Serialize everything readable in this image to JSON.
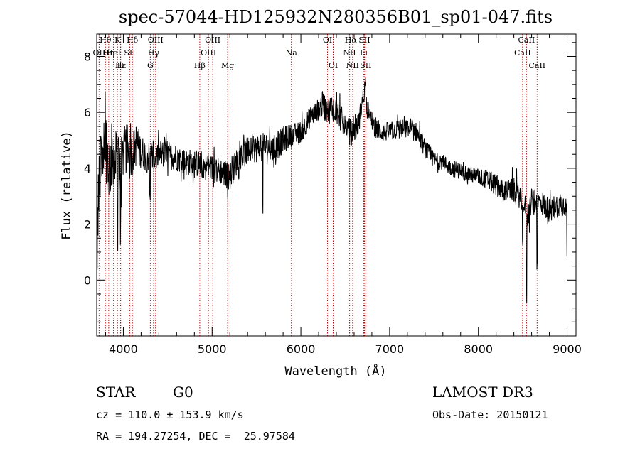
{
  "header": {
    "title": "spec-57044-HD125932N280356B01_sp01-047.fits"
  },
  "info": {
    "object_class": "STAR",
    "subclass": "G0",
    "survey": "LAMOST DR3",
    "redshift": "cz = 110.0 ± 153.9 km/s",
    "obs_date": "Obs-Date: 20150121",
    "coords": "RA = 194.27254, DEC =  25.97584"
  },
  "colors": {
    "spectrum": "#000000",
    "line_markers": "#cc0000",
    "axes": "#000000"
  },
  "chart_data": {
    "type": "line",
    "title": "spec-57044-HD125932N280356B01_sp01-047.fits",
    "xlabel": "Wavelength (Å)",
    "ylabel": "Flux (relative)",
    "xlim": [
      3700,
      9100
    ],
    "ylim": [
      -2,
      8.8
    ],
    "grid": false,
    "x_ticks": [
      4000,
      5000,
      6000,
      7000,
      8000,
      9000
    ],
    "y_ticks": [
      0,
      2,
      4,
      6,
      8
    ],
    "spectrum_envelope": {
      "wavelength": [
        3700,
        3720,
        3760,
        3800,
        3840,
        3880,
        3920,
        3960,
        4000,
        4050,
        4100,
        4150,
        4200,
        4250,
        4300,
        4350,
        4400,
        4500,
        4600,
        4700,
        4800,
        4900,
        5000,
        5100,
        5200,
        5300,
        5400,
        5500,
        5600,
        5700,
        5800,
        5900,
        6000,
        6100,
        6200,
        6250,
        6300,
        6350,
        6400,
        6450,
        6500,
        6550,
        6600,
        6650,
        6700,
        6720,
        6750,
        6800,
        6900,
        7000,
        7100,
        7200,
        7300,
        7400,
        7500,
        7600,
        7700,
        7800,
        7900,
        8000,
        8100,
        8200,
        8300,
        8400,
        8500,
        8550,
        8600,
        8650,
        8700,
        8800,
        8900,
        9000
      ],
      "flux": [
        0.2,
        3.0,
        4.8,
        5.0,
        4.0,
        4.6,
        4.2,
        4.5,
        4.6,
        4.7,
        4.5,
        4.9,
        4.6,
        4.5,
        4.4,
        4.3,
        4.5,
        4.5,
        4.4,
        4.2,
        4.2,
        4.1,
        4.0,
        3.9,
        3.7,
        4.4,
        4.6,
        4.7,
        4.8,
        4.7,
        5.0,
        5.2,
        5.3,
        5.8,
        6.1,
        6.3,
        6.0,
        6.2,
        6.1,
        5.8,
        5.5,
        5.4,
        5.3,
        5.6,
        6.5,
        6.9,
        6.1,
        5.6,
        5.3,
        5.3,
        5.4,
        5.4,
        5.3,
        4.7,
        4.3,
        4.2,
        4.0,
        3.9,
        3.8,
        3.7,
        3.6,
        3.4,
        3.2,
        3.2,
        2.9,
        2.3,
        2.8,
        2.8,
        2.8,
        2.5,
        2.7,
        2.7
      ],
      "noise_amplitude": [
        0.8,
        1.5,
        1.5,
        1.4,
        1.3,
        1.2,
        1.1,
        1.0,
        0.9,
        0.9,
        0.8,
        0.8,
        0.6,
        0.6,
        0.6,
        0.5,
        0.5,
        0.5,
        0.5,
        0.5,
        0.5,
        0.5,
        0.5,
        0.5,
        0.5,
        0.5,
        0.5,
        0.5,
        0.5,
        0.5,
        0.5,
        0.4,
        0.4,
        0.4,
        0.4,
        0.5,
        0.5,
        0.5,
        0.5,
        0.5,
        0.4,
        0.4,
        0.4,
        0.4,
        0.4,
        0.4,
        0.4,
        0.4,
        0.35,
        0.35,
        0.35,
        0.35,
        0.35,
        0.35,
        0.3,
        0.3,
        0.3,
        0.3,
        0.3,
        0.3,
        0.35,
        0.4,
        0.4,
        0.45,
        0.45,
        0.5,
        0.45,
        0.45,
        0.45,
        0.45,
        0.45,
        0.45
      ]
    },
    "spectral_lines": [
      {
        "label": "OII",
        "x": 3727,
        "row": 1
      },
      {
        "label": "Hθ",
        "x": 3798,
        "row": 0
      },
      {
        "label": "Hη",
        "x": 3835,
        "row": 1
      },
      {
        "label": "HeI",
        "x": 3889,
        "row": 1
      },
      {
        "label": "Hε",
        "x": 3970,
        "row": 2
      },
      {
        "label": "K",
        "x": 3934,
        "row": 0
      },
      {
        "label": "H",
        "x": 3968,
        "row": 2
      },
      {
        "label": "SII",
        "x": 4072,
        "row": 1
      },
      {
        "label": "Hδ",
        "x": 4102,
        "row": 0
      },
      {
        "label": "G",
        "x": 4304,
        "row": 2
      },
      {
        "label": "Hγ",
        "x": 4340,
        "row": 1
      },
      {
        "label": "OIII",
        "x": 4363,
        "row": 0
      },
      {
        "label": "Hβ",
        "x": 4861,
        "row": 2
      },
      {
        "label": "OIII",
        "x": 4959,
        "row": 1
      },
      {
        "label": "OIII",
        "x": 5007,
        "row": 0
      },
      {
        "label": "Mg",
        "x": 5175,
        "row": 2
      },
      {
        "label": "Na",
        "x": 5893,
        "row": 1
      },
      {
        "label": "OI",
        "x": 6300,
        "row": 0
      },
      {
        "label": "OI",
        "x": 6364,
        "row": 2
      },
      {
        "label": "NII",
        "x": 6548,
        "row": 1
      },
      {
        "label": "Hα",
        "x": 6563,
        "row": 0
      },
      {
        "label": "NII",
        "x": 6583,
        "row": 2
      },
      {
        "label": "Li",
        "x": 6708,
        "row": 1
      },
      {
        "label": "SII",
        "x": 6716,
        "row": 0
      },
      {
        "label": "SII",
        "x": 6731,
        "row": 2
      },
      {
        "label": "CaII",
        "x": 8498,
        "row": 1
      },
      {
        "label": "CaII",
        "x": 8542,
        "row": 0
      },
      {
        "label": "CaII",
        "x": 8662,
        "row": 2
      }
    ]
  }
}
